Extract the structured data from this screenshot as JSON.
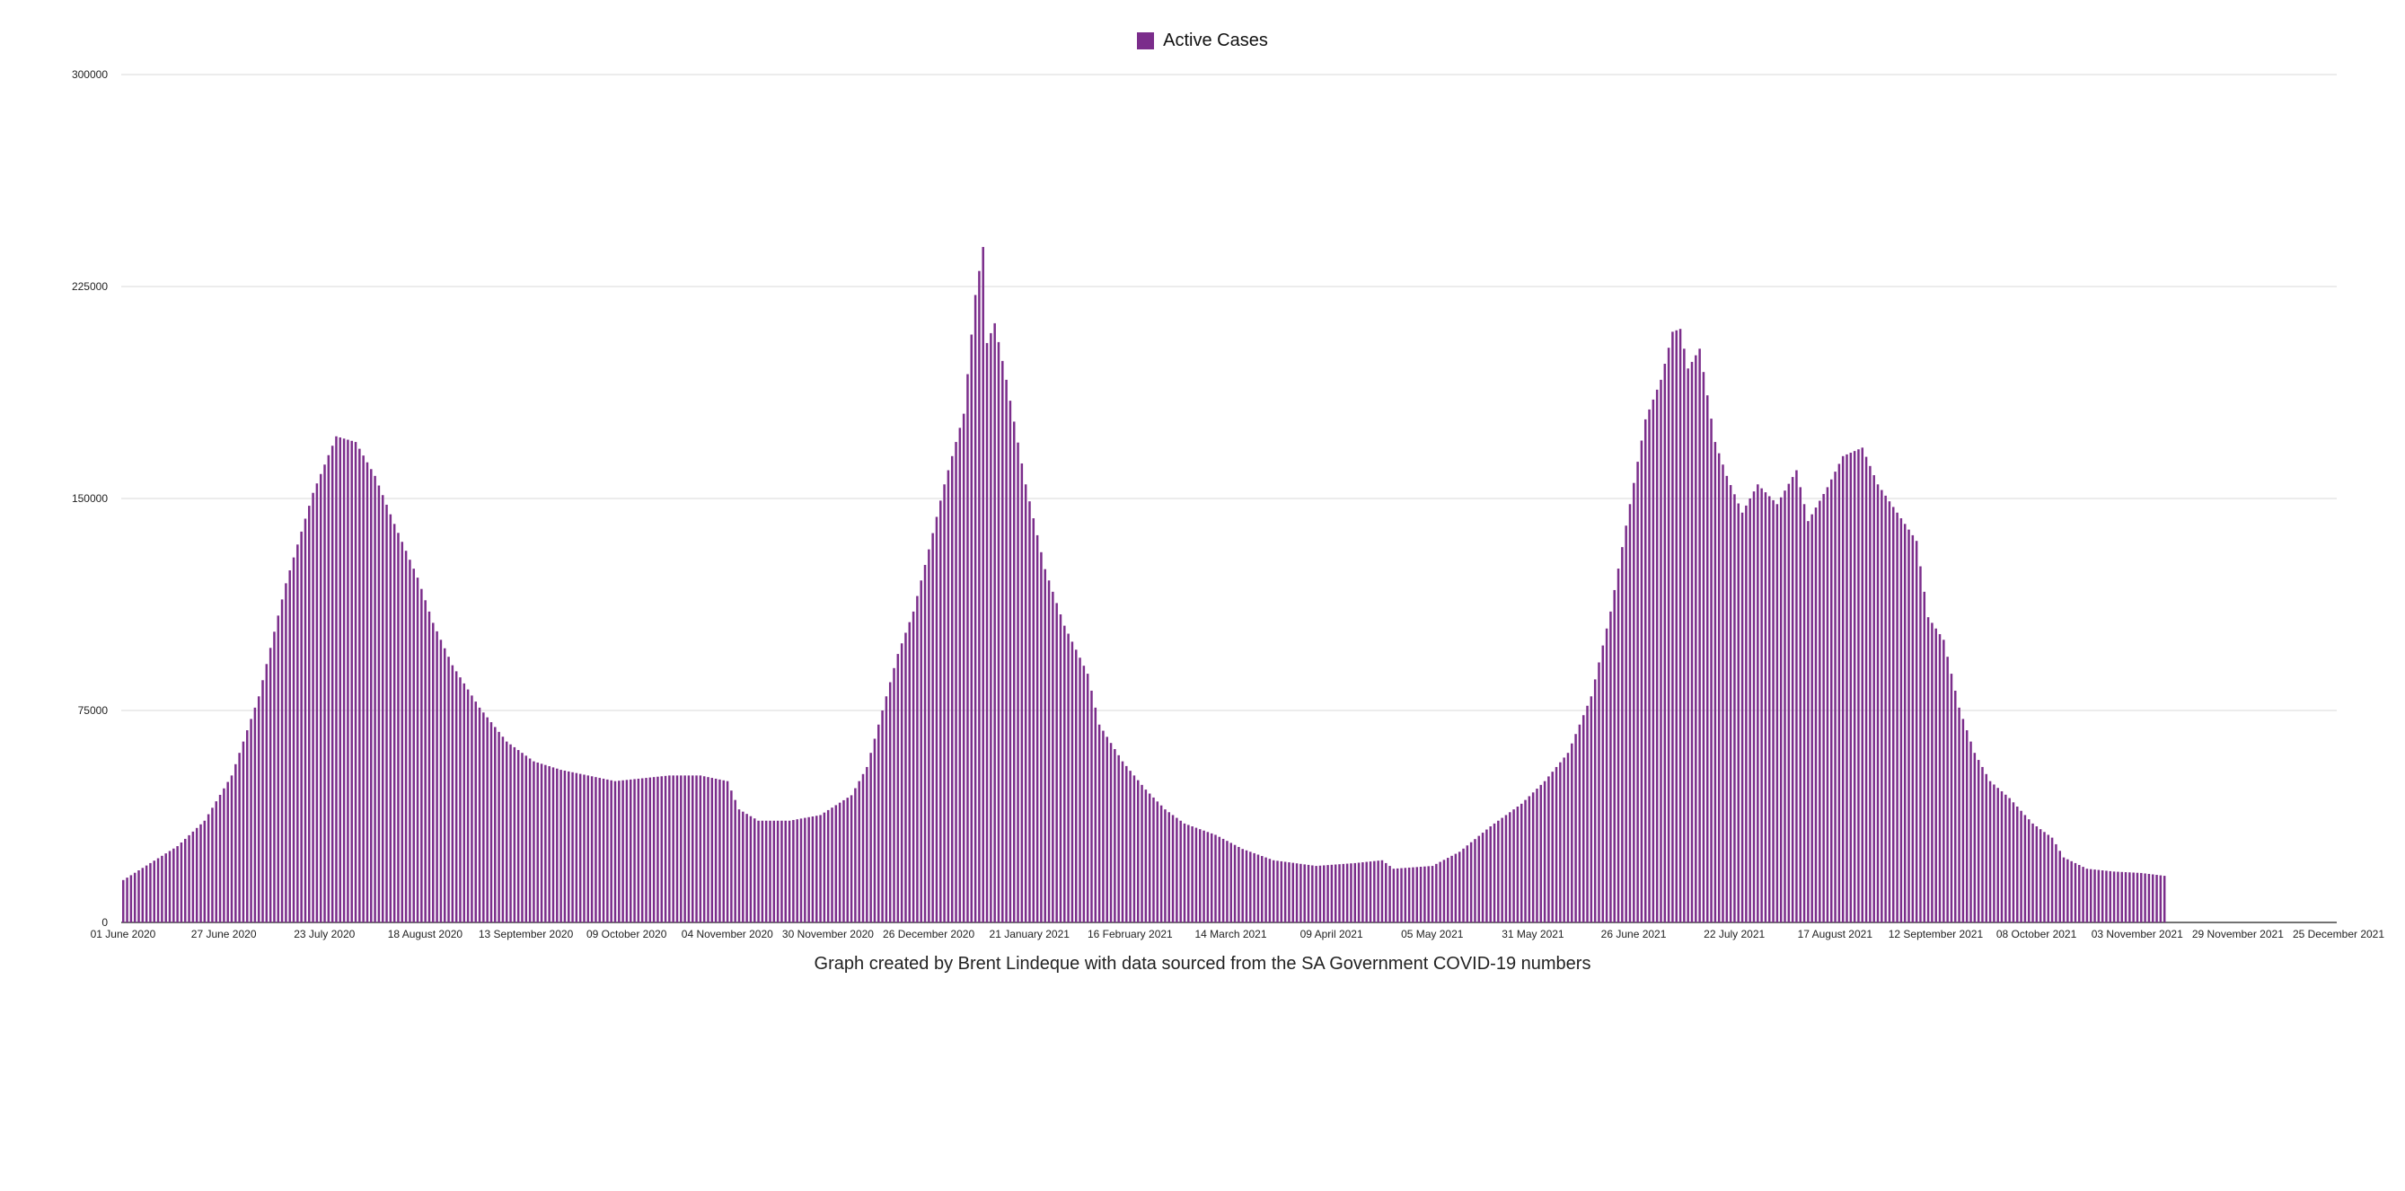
{
  "legend": {
    "label": "Active Cases"
  },
  "caption": "Graph created by Brent Lindeque with data sourced from the SA Government COVID-19 numbers",
  "colors": {
    "bar": "#7b2d8b",
    "grid": "#d9d9d9",
    "axis": "#444444"
  },
  "chart_data": {
    "type": "bar",
    "series": [
      {
        "name": "Active Cases"
      }
    ],
    "x_start": "01 June 2020",
    "x_end": "25 December 2021",
    "ylim": [
      0,
      300000
    ],
    "yticks": [
      "0",
      "75000",
      "150000",
      "225000",
      "300000"
    ],
    "xticks": [
      "01 June 2020",
      "27 June 2020",
      "23 July 2020",
      "18 August 2020",
      "13 September 2020",
      "09 October 2020",
      "04 November 2020",
      "30 November 2020",
      "26 December 2020",
      "21 January 2021",
      "16 February 2021",
      "14 March 2021",
      "09 April 2021",
      "05 May 2021",
      "31 May 2021",
      "26 June 2021",
      "22 July 2021",
      "17 August 2021",
      "12 September 2021",
      "08 October 2021",
      "03 November 2021",
      "29 November 2021",
      "25 December 2021"
    ],
    "legend_position": "top-center",
    "grid": true,
    "keyframes": [
      [
        "01 June 2020",
        15000
      ],
      [
        "08 June 2020",
        21000
      ],
      [
        "15 June 2020",
        27000
      ],
      [
        "22 June 2020",
        36000
      ],
      [
        "29 June 2020",
        52000
      ],
      [
        "06 July 2020",
        80000
      ],
      [
        "13 July 2020",
        120000
      ],
      [
        "20 July 2020",
        152000
      ],
      [
        "26 July 2020",
        172000
      ],
      [
        "31 July 2020",
        170000
      ],
      [
        "05 August 2020",
        158000
      ],
      [
        "10 August 2020",
        141000
      ],
      [
        "16 August 2020",
        122000
      ],
      [
        "20 August 2020",
        106000
      ],
      [
        "25 August 2020",
        91000
      ],
      [
        "01 September 2020",
        76000
      ],
      [
        "08 September 2020",
        64000
      ],
      [
        "15 September 2020",
        57000
      ],
      [
        "22 September 2020",
        54000
      ],
      [
        "29 September 2020",
        52000
      ],
      [
        "06 October 2020",
        50000
      ],
      [
        "13 October 2020",
        51000
      ],
      [
        "20 October 2020",
        52000
      ],
      [
        "28 October 2020",
        52000
      ],
      [
        "04 November 2020",
        50000
      ],
      [
        "07 November 2020",
        40000
      ],
      [
        "12 November 2020",
        36000
      ],
      [
        "20 November 2020",
        36000
      ],
      [
        "28 November 2020",
        38000
      ],
      [
        "06 December 2020",
        45000
      ],
      [
        "10 December 2020",
        55000
      ],
      [
        "14 December 2020",
        75000
      ],
      [
        "18 December 2020",
        95000
      ],
      [
        "22 December 2020",
        110000
      ],
      [
        "26 December 2020",
        132000
      ],
      [
        "30 December 2020",
        155000
      ],
      [
        "04 January 2021",
        180000
      ],
      [
        "07 January 2021",
        222000
      ],
      [
        "09 January 2021",
        239000
      ],
      [
        "10 January 2021",
        205000
      ],
      [
        "12 January 2021",
        212000
      ],
      [
        "15 January 2021",
        192000
      ],
      [
        "20 January 2021",
        155000
      ],
      [
        "25 January 2021",
        125000
      ],
      [
        "30 January 2021",
        105000
      ],
      [
        "05 February 2021",
        88000
      ],
      [
        "08 February 2021",
        70000
      ],
      [
        "14 February 2021",
        57000
      ],
      [
        "20 February 2021",
        47000
      ],
      [
        "25 February 2021",
        40000
      ],
      [
        "02 March 2021",
        35000
      ],
      [
        "10 March 2021",
        31000
      ],
      [
        "17 March 2021",
        26000
      ],
      [
        "25 March 2021",
        22000
      ],
      [
        "05 April 2021",
        20000
      ],
      [
        "15 April 2021",
        21000
      ],
      [
        "22 April 2021",
        22000
      ],
      [
        "25 April 2021",
        19000
      ],
      [
        "05 May 2021",
        20000
      ],
      [
        "12 May 2021",
        25000
      ],
      [
        "20 May 2021",
        34000
      ],
      [
        "28 May 2021",
        42000
      ],
      [
        "03 June 2021",
        50000
      ],
      [
        "09 June 2021",
        60000
      ],
      [
        "15 June 2021",
        80000
      ],
      [
        "20 June 2021",
        110000
      ],
      [
        "25 June 2021",
        148000
      ],
      [
        "29 June 2021",
        178000
      ],
      [
        "03 July 2021",
        192000
      ],
      [
        "06 July 2021",
        209000
      ],
      [
        "08 July 2021",
        210000
      ],
      [
        "10 July 2021",
        196000
      ],
      [
        "13 July 2021",
        203000
      ],
      [
        "17 July 2021",
        170000
      ],
      [
        "20 July 2021",
        158000
      ],
      [
        "24 July 2021",
        145000
      ],
      [
        "28 July 2021",
        155000
      ],
      [
        "02 August 2021",
        148000
      ],
      [
        "07 August 2021",
        160000
      ],
      [
        "10 August 2021",
        142000
      ],
      [
        "15 August 2021",
        154000
      ],
      [
        "19 August 2021",
        165000
      ],
      [
        "24 August 2021",
        168000
      ],
      [
        "28 August 2021",
        155000
      ],
      [
        "03 September 2021",
        143000
      ],
      [
        "07 September 2021",
        135000
      ],
      [
        "10 September 2021",
        108000
      ],
      [
        "14 September 2021",
        100000
      ],
      [
        "18 September 2021",
        76000
      ],
      [
        "22 September 2021",
        60000
      ],
      [
        "26 September 2021",
        50000
      ],
      [
        "01 October 2021",
        44000
      ],
      [
        "07 October 2021",
        35000
      ],
      [
        "12 October 2021",
        30000
      ],
      [
        "15 October 2021",
        23000
      ],
      [
        "21 October 2021",
        19000
      ],
      [
        "28 October 2021",
        18000
      ],
      [
        "04 November 2021",
        17500
      ],
      [
        "10 November 2021",
        16500
      ]
    ]
  }
}
